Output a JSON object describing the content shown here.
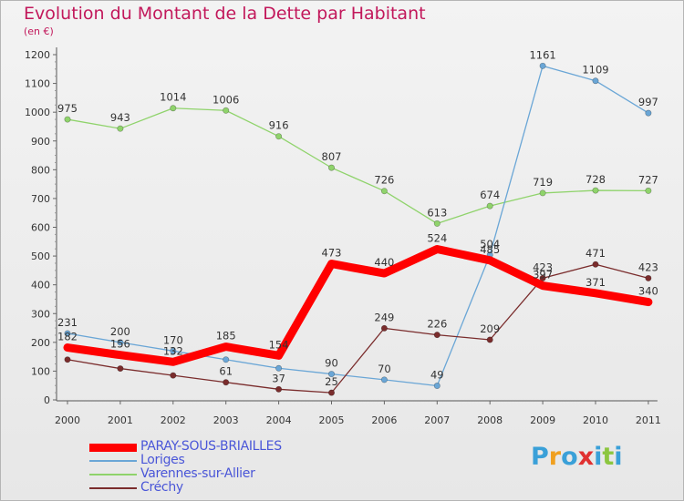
{
  "page": {
    "title": "Evolution du Montant de la Dette par Habitant",
    "subtitle": "(en €)"
  },
  "chart_data": {
    "type": "line",
    "title": "Evolution du Montant de la Dette par Habitant",
    "subtitle": "(en €)",
    "xlabel": "",
    "ylabel": "",
    "x": [
      "2000",
      "2001",
      "2002",
      "2003",
      "2004",
      "2005",
      "2006",
      "2007",
      "2008",
      "2009",
      "2010",
      "2011"
    ],
    "yticks": [
      "0",
      "100",
      "200",
      "300",
      "400",
      "500",
      "600",
      "700",
      "800",
      "900",
      "1000",
      "1100",
      "1200"
    ],
    "ylim": [
      0,
      1200
    ],
    "grid": false,
    "legend": "bottom-left",
    "series": [
      {
        "name": "Varennes-sur-Allier",
        "color": "#8fd36b",
        "values": [
          975,
          943,
          1014,
          1006,
          916,
          807,
          726,
          613,
          674,
          719,
          728,
          727
        ]
      },
      {
        "name": "Loriges",
        "color": "#6aa6d6",
        "values": [
          231,
          200,
          170,
          140,
          110,
          90,
          70,
          49,
          504,
          1161,
          1109,
          997
        ]
      },
      {
        "name": "Créchy",
        "color": "#7a2c2c",
        "values": [
          140,
          109,
          85,
          61,
          37,
          25,
          249,
          226,
          209,
          423,
          471,
          423
        ]
      },
      {
        "name": "PARAY-SOUS-BRIAILLES",
        "color": "#ff0000",
        "values": [
          182,
          156,
          132,
          185,
          154,
          473,
          440,
          524,
          485,
          397,
          371,
          340
        ]
      }
    ],
    "data_labels": [
      {
        "series": 0,
        "i": 0,
        "text": "975"
      },
      {
        "series": 0,
        "i": 1,
        "text": "943"
      },
      {
        "series": 0,
        "i": 2,
        "text": "1014"
      },
      {
        "series": 0,
        "i": 3,
        "text": "1006"
      },
      {
        "series": 0,
        "i": 4,
        "text": "916"
      },
      {
        "series": 0,
        "i": 5,
        "text": "807"
      },
      {
        "series": 0,
        "i": 6,
        "text": "726"
      },
      {
        "series": 0,
        "i": 7,
        "text": "613"
      },
      {
        "series": 0,
        "i": 8,
        "text": "674"
      },
      {
        "series": 0,
        "i": 9,
        "text": "719"
      },
      {
        "series": 0,
        "i": 10,
        "text": "728"
      },
      {
        "series": 0,
        "i": 11,
        "text": "727"
      },
      {
        "series": 1,
        "i": 0,
        "text": "231"
      },
      {
        "series": 1,
        "i": 1,
        "text": "200"
      },
      {
        "series": 1,
        "i": 2,
        "text": "170"
      },
      {
        "series": 1,
        "i": 5,
        "text": "90"
      },
      {
        "series": 1,
        "i": 6,
        "text": "70"
      },
      {
        "series": 1,
        "i": 7,
        "text": "49"
      },
      {
        "series": 1,
        "i": 8,
        "text": "504"
      },
      {
        "series": 1,
        "i": 9,
        "text": "1161"
      },
      {
        "series": 1,
        "i": 10,
        "text": "1109"
      },
      {
        "series": 1,
        "i": 11,
        "text": "997"
      },
      {
        "series": 2,
        "i": 3,
        "text": "61"
      },
      {
        "series": 2,
        "i": 4,
        "text": "37"
      },
      {
        "series": 2,
        "i": 5,
        "text": "25"
      },
      {
        "series": 2,
        "i": 6,
        "text": "249"
      },
      {
        "series": 2,
        "i": 7,
        "text": "226"
      },
      {
        "series": 2,
        "i": 8,
        "text": "209"
      },
      {
        "series": 2,
        "i": 9,
        "text": "423"
      },
      {
        "series": 2,
        "i": 10,
        "text": "471"
      },
      {
        "series": 2,
        "i": 11,
        "text": "423"
      },
      {
        "series": 3,
        "i": 0,
        "text": "182"
      },
      {
        "series": 3,
        "i": 1,
        "text": "156"
      },
      {
        "series": 3,
        "i": 2,
        "text": "132"
      },
      {
        "series": 3,
        "i": 3,
        "text": "185"
      },
      {
        "series": 3,
        "i": 4,
        "text": "154"
      },
      {
        "series": 3,
        "i": 5,
        "text": "473"
      },
      {
        "series": 3,
        "i": 6,
        "text": "440"
      },
      {
        "series": 3,
        "i": 7,
        "text": "524"
      },
      {
        "series": 3,
        "i": 8,
        "text": "485"
      },
      {
        "series": 3,
        "i": 9,
        "text": "397"
      },
      {
        "series": 3,
        "i": 10,
        "text": "371"
      },
      {
        "series": 3,
        "i": 11,
        "text": "340"
      }
    ]
  },
  "legend": {
    "items": [
      {
        "label": "PARAY-SOUS-BRIAILLES",
        "color": "#ff0000",
        "thick": true
      },
      {
        "label": "Loriges",
        "color": "#6aa6d6",
        "thick": false
      },
      {
        "label": "Varennes-sur-Allier",
        "color": "#8fd36b",
        "thick": false
      },
      {
        "label": "Créchy",
        "color": "#7a2c2c",
        "thick": false
      }
    ]
  },
  "logo": {
    "letters": [
      "P",
      "r",
      "o",
      "x",
      "i",
      "t",
      "i"
    ],
    "colors": [
      "#3aa0d8",
      "#f0a020",
      "#3aa0d8",
      "#e03030",
      "#3aa0d8",
      "#8cc63f",
      "#3aa0d8"
    ]
  }
}
